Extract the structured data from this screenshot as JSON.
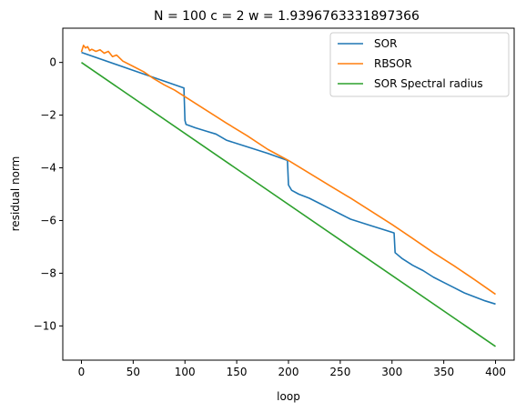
{
  "chart_data": {
    "type": "line",
    "title": "N = 100 c = 2 w = 1.9396763331897366",
    "xlabel": "loop",
    "ylabel": "residual norm",
    "xlim": [
      -18,
      418
    ],
    "ylim": [
      -11.3,
      1.3
    ],
    "x_ticks": [
      0,
      50,
      100,
      150,
      200,
      250,
      300,
      350,
      400
    ],
    "x_tick_labels": [
      "0",
      "50",
      "100",
      "150",
      "200",
      "250",
      "300",
      "350",
      "400"
    ],
    "y_ticks": [
      0,
      -2,
      -4,
      -6,
      -8,
      -10
    ],
    "y_tick_labels": [
      "0",
      "−2",
      "−4",
      "−6",
      "−8",
      "−10"
    ],
    "grid": false,
    "legend_position": "top-right",
    "series": [
      {
        "name": "SOR",
        "color": "#1f77b4",
        "points": [
          [
            0,
            0.38
          ],
          [
            50,
            -0.3
          ],
          [
            99,
            -0.97
          ],
          [
            100,
            -2.2
          ],
          [
            101,
            -2.35
          ],
          [
            110,
            -2.48
          ],
          [
            120,
            -2.6
          ],
          [
            130,
            -2.72
          ],
          [
            140,
            -2.95
          ],
          [
            160,
            -3.2
          ],
          [
            180,
            -3.45
          ],
          [
            199,
            -3.72
          ],
          [
            200,
            -4.65
          ],
          [
            203,
            -4.85
          ],
          [
            210,
            -5.0
          ],
          [
            220,
            -5.15
          ],
          [
            230,
            -5.35
          ],
          [
            240,
            -5.55
          ],
          [
            250,
            -5.75
          ],
          [
            260,
            -5.95
          ],
          [
            280,
            -6.2
          ],
          [
            302,
            -6.47
          ],
          [
            303,
            -7.22
          ],
          [
            310,
            -7.45
          ],
          [
            320,
            -7.7
          ],
          [
            330,
            -7.9
          ],
          [
            340,
            -8.15
          ],
          [
            350,
            -8.35
          ],
          [
            360,
            -8.55
          ],
          [
            370,
            -8.75
          ],
          [
            380,
            -8.9
          ],
          [
            390,
            -9.05
          ],
          [
            400,
            -9.17
          ]
        ]
      },
      {
        "name": "RBSOR",
        "color": "#ff7f0e",
        "points": [
          [
            0,
            0.4
          ],
          [
            2,
            0.65
          ],
          [
            4,
            0.55
          ],
          [
            6,
            0.6
          ],
          [
            8,
            0.45
          ],
          [
            10,
            0.5
          ],
          [
            14,
            0.42
          ],
          [
            18,
            0.48
          ],
          [
            22,
            0.35
          ],
          [
            26,
            0.42
          ],
          [
            30,
            0.22
          ],
          [
            34,
            0.28
          ],
          [
            40,
            0.05
          ],
          [
            50,
            -0.15
          ],
          [
            60,
            -0.35
          ],
          [
            70,
            -0.62
          ],
          [
            80,
            -0.85
          ],
          [
            90,
            -1.05
          ],
          [
            100,
            -1.3
          ],
          [
            120,
            -1.8
          ],
          [
            140,
            -2.3
          ],
          [
            160,
            -2.78
          ],
          [
            180,
            -3.3
          ],
          [
            200,
            -3.72
          ],
          [
            220,
            -4.2
          ],
          [
            240,
            -4.68
          ],
          [
            260,
            -5.15
          ],
          [
            280,
            -5.65
          ],
          [
            300,
            -6.15
          ],
          [
            320,
            -6.68
          ],
          [
            340,
            -7.22
          ],
          [
            360,
            -7.72
          ],
          [
            380,
            -8.25
          ],
          [
            400,
            -8.8
          ]
        ]
      },
      {
        "name": "SOR Spectral radius",
        "color": "#2ca02c",
        "points": [
          [
            0,
            0.0
          ],
          [
            400,
            -10.78
          ]
        ]
      }
    ]
  }
}
